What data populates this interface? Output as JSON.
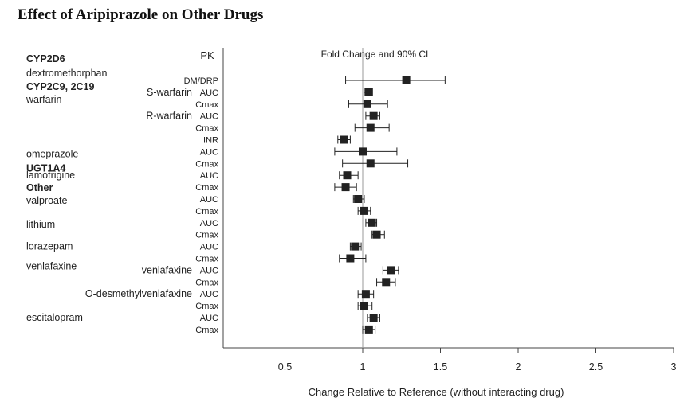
{
  "page": {
    "title": "Effect of Aripiprazole on Other Drugs"
  },
  "chart_data": {
    "type": "forest",
    "pk_header": "PK",
    "ci_header": "Fold Change and 90% CI",
    "xlabel": "Change Relative to Reference (without interacting drug)",
    "xlim": [
      0.0,
      3.0
    ],
    "xticks": [
      0.5,
      1,
      1.5,
      2,
      2.5,
      3
    ],
    "xtick_labels": [
      "0.5",
      "1",
      "1.5",
      "2",
      "2.5",
      "3"
    ],
    "reference_line": 1,
    "left_labels": [
      {
        "text": "CYP2D6",
        "bold": true,
        "row": 0,
        "dy": -27
      },
      {
        "text": "dextromethorphan",
        "bold": false,
        "row": 0,
        "dy": -9
      },
      {
        "text": "CYP2C9, 2C19",
        "bold": true,
        "row": 1,
        "dy": -7
      },
      {
        "text": "warfarin",
        "bold": false,
        "row": 1,
        "dy": 9
      },
      {
        "text": "omeprazole",
        "bold": false,
        "row": 6,
        "dy": 3
      },
      {
        "text": "UGT1A4",
        "bold": true,
        "row": 7,
        "dy": 6
      },
      {
        "text": "lamotrigine",
        "bold": false,
        "row": 8,
        "dy": 0
      },
      {
        "text": "Other",
        "bold": true,
        "row": 9,
        "dy": 1
      },
      {
        "text": "valproate",
        "bold": false,
        "row": 10,
        "dy": 2
      },
      {
        "text": "lithium",
        "bold": false,
        "row": 12,
        "dy": 2
      },
      {
        "text": "lorazepam",
        "bold": false,
        "row": 14,
        "dy": 0
      },
      {
        "text": "venlafaxine",
        "bold": false,
        "row": 16,
        "dy": -5
      },
      {
        "text": "escitalopram",
        "bold": false,
        "row": 20,
        "dy": 0
      }
    ],
    "mid_labels": [
      {
        "text": "S-warfarin",
        "row": 1
      },
      {
        "text": "R-warfarin",
        "row": 3
      },
      {
        "text": "venlafaxine",
        "row": 16
      },
      {
        "text": "O-desmethylvenlafaxine",
        "row": 18
      }
    ],
    "rows": [
      {
        "pk": "DM/DRP",
        "est": 1.28,
        "lo": 0.89,
        "hi": 1.53
      },
      {
        "pk": "AUC",
        "est": 1.04,
        "lo": 1.01,
        "hi": 1.06
      },
      {
        "pk": "Cmax",
        "est": 1.03,
        "lo": 0.91,
        "hi": 1.16
      },
      {
        "pk": "AUC",
        "est": 1.07,
        "lo": 1.02,
        "hi": 1.11
      },
      {
        "pk": "Cmax",
        "est": 1.05,
        "lo": 0.95,
        "hi": 1.17
      },
      {
        "pk": "INR",
        "est": 0.88,
        "lo": 0.84,
        "hi": 0.92
      },
      {
        "pk": "AUC",
        "est": 1.0,
        "lo": 0.82,
        "hi": 1.22
      },
      {
        "pk": "Cmax",
        "est": 1.05,
        "lo": 0.87,
        "hi": 1.29
      },
      {
        "pk": "AUC",
        "est": 0.9,
        "lo": 0.85,
        "hi": 0.97
      },
      {
        "pk": "Cmax",
        "est": 0.89,
        "lo": 0.82,
        "hi": 0.96
      },
      {
        "pk": "AUC",
        "est": 0.97,
        "lo": 0.94,
        "hi": 1.01
      },
      {
        "pk": "Cmax",
        "est": 1.01,
        "lo": 0.97,
        "hi": 1.05
      },
      {
        "pk": "AUC",
        "est": 1.06,
        "lo": 1.02,
        "hi": 1.09
      },
      {
        "pk": "Cmax",
        "est": 1.09,
        "lo": 1.06,
        "hi": 1.14
      },
      {
        "pk": "AUC",
        "est": 0.95,
        "lo": 0.92,
        "hi": 0.99
      },
      {
        "pk": "Cmax",
        "est": 0.92,
        "lo": 0.85,
        "hi": 1.02
      },
      {
        "pk": "AUC",
        "est": 1.18,
        "lo": 1.13,
        "hi": 1.23
      },
      {
        "pk": "Cmax",
        "est": 1.15,
        "lo": 1.09,
        "hi": 1.21
      },
      {
        "pk": "AUC",
        "est": 1.02,
        "lo": 0.97,
        "hi": 1.07
      },
      {
        "pk": "Cmax",
        "est": 1.01,
        "lo": 0.97,
        "hi": 1.06
      },
      {
        "pk": "AUC",
        "est": 1.07,
        "lo": 1.03,
        "hi": 1.11
      },
      {
        "pk": "Cmax",
        "est": 1.04,
        "lo": 1.0,
        "hi": 1.08
      }
    ]
  }
}
